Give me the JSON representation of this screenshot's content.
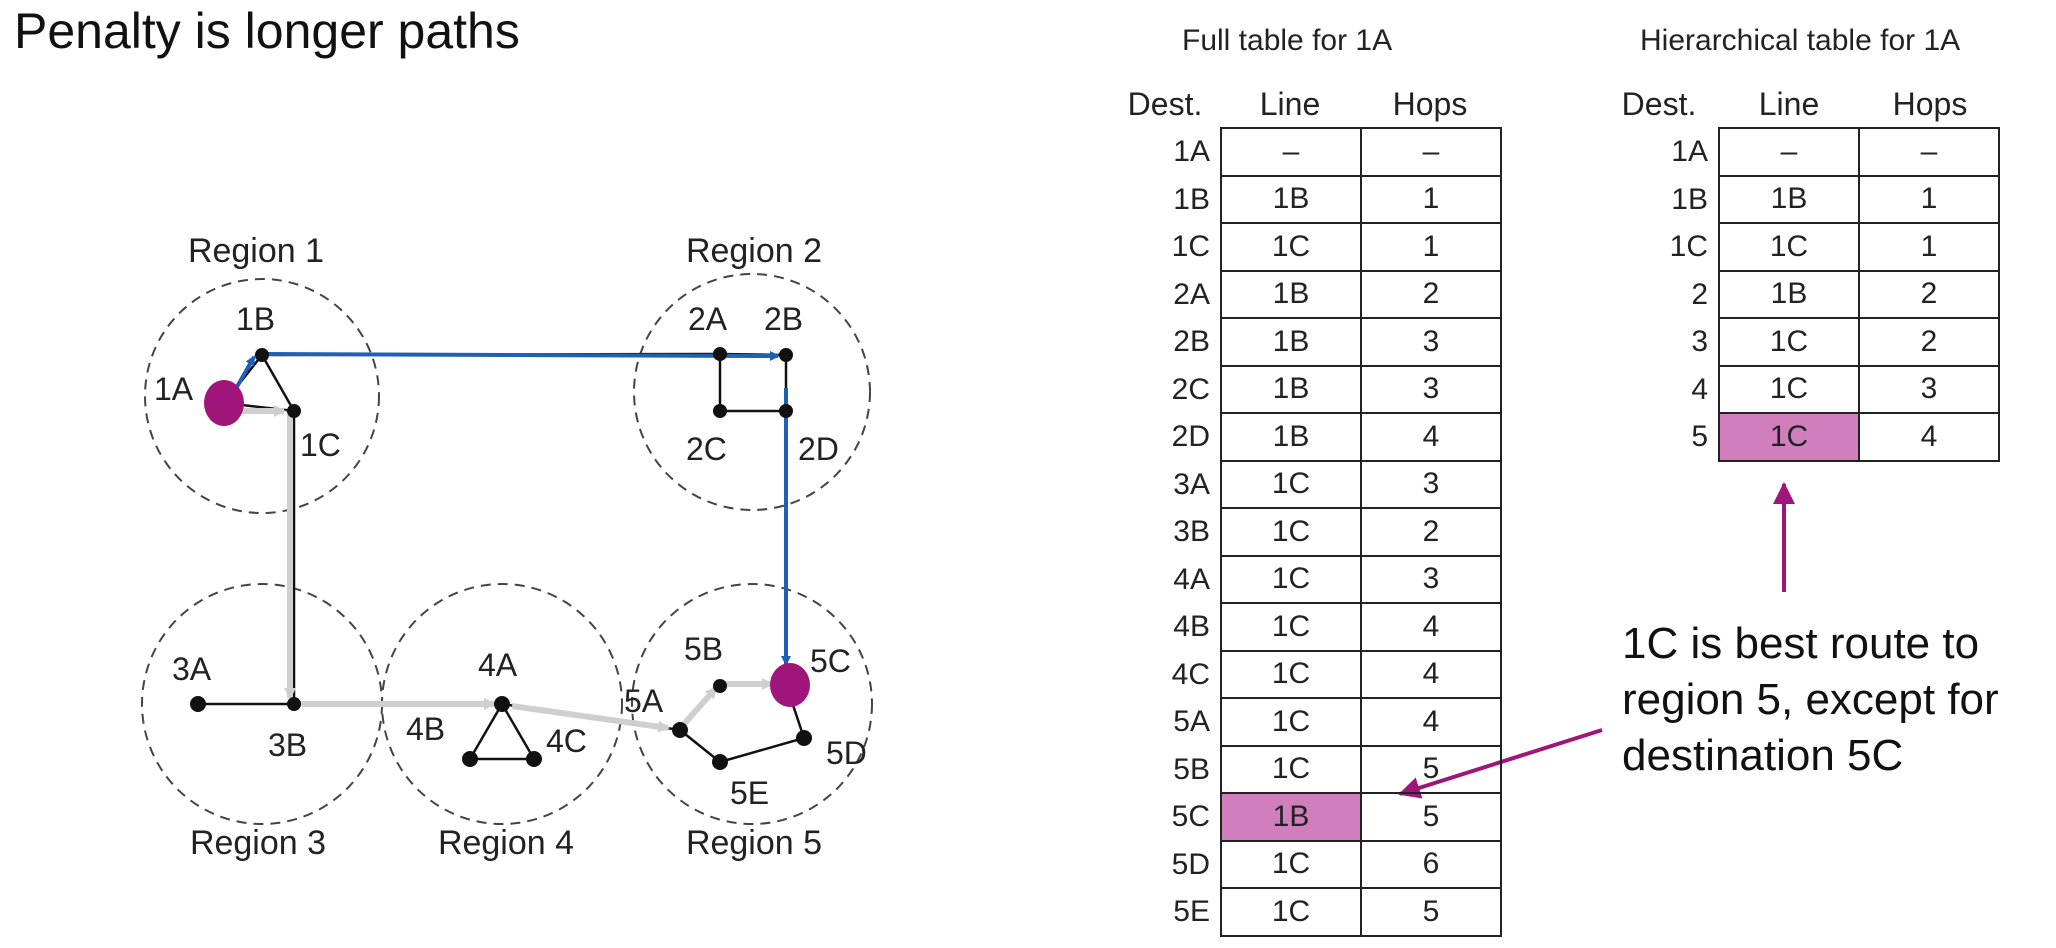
{
  "heading": "Penalty is longer paths",
  "colors": {
    "route_blue": "#1f5fb4",
    "route_gray": "#cfcfcf",
    "highlight": "#d07fbc",
    "annotation": "#a0157a"
  },
  "regions": {
    "r1": "Region 1",
    "r2": "Region 2",
    "r3": "Region 3",
    "r4": "Region 4",
    "r5": "Region 5"
  },
  "nodes": {
    "n1A": "1A",
    "n1B": "1B",
    "n1C": "1C",
    "n2A": "2A",
    "n2B": "2B",
    "n2C": "2C",
    "n2D": "2D",
    "n3A": "3A",
    "n3B": "3B",
    "n4A": "4A",
    "n4B": "4B",
    "n4C": "4C",
    "n5A": "5A",
    "n5B": "5B",
    "n5C": "5C",
    "n5D": "5D",
    "n5E": "5E"
  },
  "full_table": {
    "title": "Full table for 1A",
    "headers": [
      "Dest.",
      "Line",
      "Hops"
    ],
    "rows": [
      {
        "dest": "1A",
        "line": "–",
        "hops": "–"
      },
      {
        "dest": "1B",
        "line": "1B",
        "hops": "1"
      },
      {
        "dest": "1C",
        "line": "1C",
        "hops": "1"
      },
      {
        "dest": "2A",
        "line": "1B",
        "hops": "2"
      },
      {
        "dest": "2B",
        "line": "1B",
        "hops": "3"
      },
      {
        "dest": "2C",
        "line": "1B",
        "hops": "3"
      },
      {
        "dest": "2D",
        "line": "1B",
        "hops": "4"
      },
      {
        "dest": "3A",
        "line": "1C",
        "hops": "3"
      },
      {
        "dest": "3B",
        "line": "1C",
        "hops": "2"
      },
      {
        "dest": "4A",
        "line": "1C",
        "hops": "3"
      },
      {
        "dest": "4B",
        "line": "1C",
        "hops": "4"
      },
      {
        "dest": "4C",
        "line": "1C",
        "hops": "4"
      },
      {
        "dest": "5A",
        "line": "1C",
        "hops": "4"
      },
      {
        "dest": "5B",
        "line": "1C",
        "hops": "5"
      },
      {
        "dest": "5C",
        "line": "1B",
        "hops": "5",
        "highlight": true
      },
      {
        "dest": "5D",
        "line": "1C",
        "hops": "6"
      },
      {
        "dest": "5E",
        "line": "1C",
        "hops": "5"
      }
    ]
  },
  "hier_table": {
    "title": "Hierarchical table for 1A",
    "headers": [
      "Dest.",
      "Line",
      "Hops"
    ],
    "rows": [
      {
        "dest": "1A",
        "line": "–",
        "hops": "–"
      },
      {
        "dest": "1B",
        "line": "1B",
        "hops": "1"
      },
      {
        "dest": "1C",
        "line": "1C",
        "hops": "1"
      },
      {
        "dest": "2",
        "line": "1B",
        "hops": "2"
      },
      {
        "dest": "3",
        "line": "1C",
        "hops": "2"
      },
      {
        "dest": "4",
        "line": "1C",
        "hops": "3"
      },
      {
        "dest": "5",
        "line": "1C",
        "hops": "4",
        "highlight": true
      }
    ]
  },
  "annotation": {
    "line1": "1C is best route to",
    "line2": "region 5, except for",
    "line3": "destination 5C"
  }
}
